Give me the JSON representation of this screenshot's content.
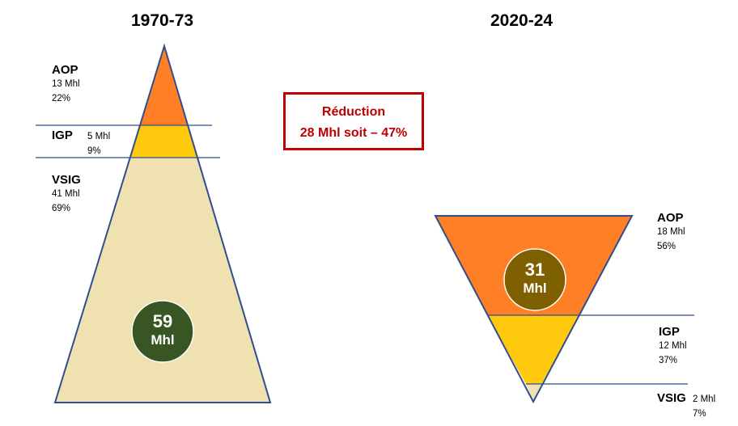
{
  "left": {
    "period": "1970-73",
    "total": {
      "value": "59",
      "unit": "Mhl"
    },
    "segments": [
      {
        "name": "AOP",
        "volume": "13 Mhl",
        "share": "22%"
      },
      {
        "name": "IGP",
        "volume": "5 Mhl",
        "share": "9%"
      },
      {
        "name": "VSIG",
        "volume": "41 Mhl",
        "share": "69%"
      }
    ]
  },
  "right": {
    "period": "2020-24",
    "total": {
      "value": "31",
      "unit": "Mhl"
    },
    "segments": [
      {
        "name": "AOP",
        "volume": "18 Mhl",
        "share": "56%"
      },
      {
        "name": "IGP",
        "volume": "12 Mhl",
        "share": "37%"
      },
      {
        "name": "VSIG",
        "volume": "2 Mhl",
        "share": "7%"
      }
    ]
  },
  "reduction": {
    "line1": "Réduction",
    "line2": "28 Mhl soit – 47%"
  },
  "colors": {
    "aop": "#ff7f27",
    "igp": "#ffc90e",
    "vsig": "#efe1b0",
    "outline": "#2f4e8f",
    "circle_left": "#375623",
    "circle_right": "#7f6000",
    "reduction": "#c00000"
  }
}
